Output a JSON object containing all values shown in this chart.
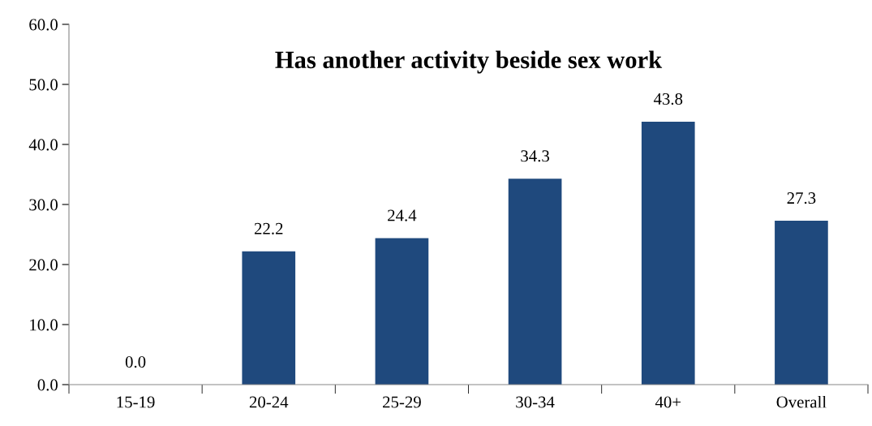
{
  "chart_data": {
    "type": "bar",
    "title": "Has another activity beside sex work",
    "categories": [
      "15-19",
      "20-24",
      "25-29",
      "30-34",
      "40+",
      "Overall"
    ],
    "values": [
      0.0,
      22.2,
      24.4,
      34.3,
      43.8,
      27.3
    ],
    "value_labels": [
      "0.0",
      "22.2",
      "24.4",
      "34.3",
      "43.8",
      "27.3"
    ],
    "color": "#1f497d",
    "ylim": [
      0,
      60
    ],
    "yticks": [
      {
        "value": 0,
        "label": "0.0"
      },
      {
        "value": 10,
        "label": "10.0"
      },
      {
        "value": 20,
        "label": "20.0"
      },
      {
        "value": 30,
        "label": "30.0"
      },
      {
        "value": 40,
        "label": "40.0"
      },
      {
        "value": 50,
        "label": "50.0"
      },
      {
        "value": 60,
        "label": "60.0"
      }
    ],
    "grid": false
  }
}
